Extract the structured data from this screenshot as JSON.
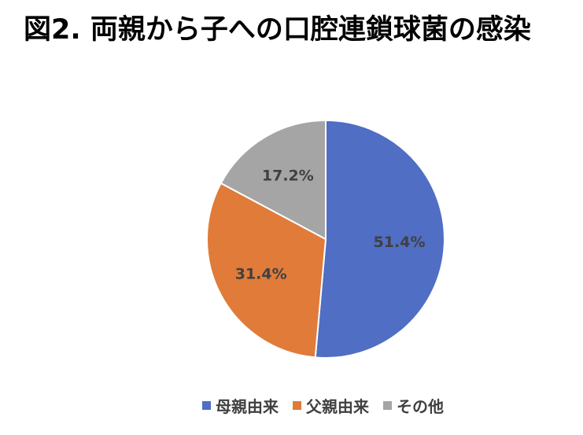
{
  "chart_data": {
    "type": "pie",
    "title": "図2.  両親から子への口腔連鎖球菌の感染",
    "categories": [
      "母親由来",
      "父親由来",
      "その他"
    ],
    "values": [
      51.4,
      31.4,
      17.2
    ],
    "data_labels": [
      "51.4%",
      "31.4%",
      "17.2%"
    ],
    "colors": [
      "#4f6ec4",
      "#e07b3a",
      "#a5a5a5"
    ],
    "start_angle": "12 o'clock",
    "direction": "clockwise",
    "legend_position": "bottom"
  }
}
